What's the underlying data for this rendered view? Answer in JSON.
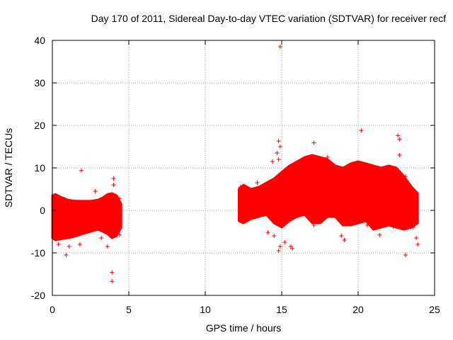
{
  "chart_data": {
    "type": "scatter",
    "title": "Day 170 of 2011, Sidereal Day-to-day VTEC variation (SDTVAR) for receiver recf",
    "xlabel": "GPS time / hours",
    "ylabel": "SDTVAR / TECUs",
    "xlim": [
      0,
      25
    ],
    "ylim": [
      -20,
      40
    ],
    "xticks": [
      0,
      5,
      10,
      15,
      20,
      25
    ],
    "yticks": [
      -20,
      -10,
      0,
      10,
      20,
      30,
      40
    ],
    "grid": true,
    "marker": "+",
    "color": "#ff0000",
    "series": [
      {
        "name": "SDTVAR",
        "band_segments": [
          {
            "x": [
              0.0,
              0.2,
              0.5,
              0.8,
              1.0,
              1.3,
              1.6,
              2.0,
              2.5,
              3.0,
              3.3,
              3.6,
              3.9,
              4.2,
              4.5
            ],
            "upper": [
              3.5,
              3.8,
              3.2,
              2.8,
              2.5,
              2.3,
              2.2,
              2.2,
              2.2,
              2.5,
              3.0,
              3.8,
              4.0,
              3.5,
              1.5
            ],
            "lower": [
              -6.5,
              -7.0,
              -6.8,
              -6.6,
              -6.5,
              -6.3,
              -6.0,
              -5.5,
              -5.0,
              -4.5,
              -5.0,
              -5.5,
              -6.5,
              -6.0,
              -4.0
            ]
          },
          {
            "x": [
              12.2,
              12.5,
              13.0,
              13.5,
              14.0,
              14.5,
              15.0,
              15.5,
              16.0,
              16.5,
              17.0,
              17.5,
              18.0,
              18.5,
              19.0,
              19.5,
              20.0,
              20.5,
              21.0,
              21.5,
              22.0,
              22.5,
              23.0,
              23.5,
              23.9
            ],
            "upper": [
              5.0,
              6.0,
              5.0,
              5.5,
              6.5,
              7.5,
              9.0,
              10.5,
              11.5,
              12.5,
              13.0,
              12.5,
              12.0,
              10.5,
              10.0,
              11.0,
              11.5,
              11.0,
              10.5,
              10.0,
              10.5,
              10.0,
              8.0,
              5.5,
              4.0
            ],
            "lower": [
              -2.5,
              -3.0,
              -2.0,
              -1.5,
              -1.0,
              -3.0,
              -4.0,
              -2.5,
              -1.5,
              -1.0,
              -3.0,
              -3.0,
              -1.5,
              -1.5,
              -3.5,
              -3.5,
              -3.0,
              -2.5,
              -4.5,
              -4.0,
              -3.5,
              -4.0,
              -4.5,
              -4.0,
              -3.0
            ]
          }
        ],
        "outliers": [
          {
            "x": 1.9,
            "y": 9.4
          },
          {
            "x": 4.0,
            "y": 7.5
          },
          {
            "x": 4.0,
            "y": 6.0
          },
          {
            "x": 3.9,
            "y": -14.6
          },
          {
            "x": 3.9,
            "y": -16.7
          },
          {
            "x": 0.9,
            "y": -10.5
          },
          {
            "x": 1.1,
            "y": -8.5
          },
          {
            "x": 1.8,
            "y": -8.0
          },
          {
            "x": 2.8,
            "y": 4.5
          },
          {
            "x": 3.6,
            "y": -8.5
          },
          {
            "x": 4.4,
            "y": 2.8
          },
          {
            "x": 4.4,
            "y": -5.8
          },
          {
            "x": 3.2,
            "y": -6.5
          },
          {
            "x": 0.4,
            "y": -8.0
          },
          {
            "x": 14.9,
            "y": 38.5
          },
          {
            "x": 14.8,
            "y": 16.3
          },
          {
            "x": 14.9,
            "y": 15.0
          },
          {
            "x": 14.7,
            "y": 13.5
          },
          {
            "x": 14.8,
            "y": 12.0
          },
          {
            "x": 14.4,
            "y": 11.5
          },
          {
            "x": 17.1,
            "y": 15.9
          },
          {
            "x": 20.2,
            "y": 18.8
          },
          {
            "x": 22.6,
            "y": 17.6
          },
          {
            "x": 22.7,
            "y": 16.7
          },
          {
            "x": 22.7,
            "y": 13.0
          },
          {
            "x": 18.0,
            "y": 12.5
          },
          {
            "x": 15.2,
            "y": -7.5
          },
          {
            "x": 15.6,
            "y": -8.5
          },
          {
            "x": 15.7,
            "y": -9.0
          },
          {
            "x": 14.1,
            "y": -5.2
          },
          {
            "x": 14.5,
            "y": -6.0
          },
          {
            "x": 14.8,
            "y": -9.5
          },
          {
            "x": 14.9,
            "y": -8.5
          },
          {
            "x": 17.1,
            "y": -3.5
          },
          {
            "x": 18.9,
            "y": -6.0
          },
          {
            "x": 19.1,
            "y": -7.0
          },
          {
            "x": 20.6,
            "y": -3.5
          },
          {
            "x": 21.4,
            "y": -5.8
          },
          {
            "x": 23.1,
            "y": -10.5
          },
          {
            "x": 23.1,
            "y": 8.0
          },
          {
            "x": 23.6,
            "y": -4.0
          },
          {
            "x": 23.8,
            "y": -6.5
          },
          {
            "x": 23.9,
            "y": -8.0
          },
          {
            "x": 13.4,
            "y": 6.5
          },
          {
            "x": 12.3,
            "y": 5.5
          },
          {
            "x": 22.3,
            "y": -3.8
          }
        ]
      }
    ]
  }
}
